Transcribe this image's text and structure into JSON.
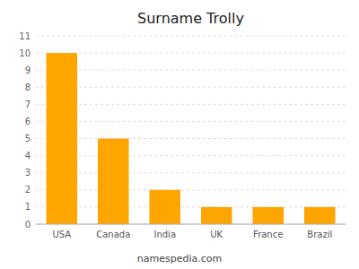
{
  "chart_data": {
    "type": "bar",
    "title": "Surname Trolly",
    "categories": [
      "USA",
      "Canada",
      "India",
      "UK",
      "France",
      "Brazil"
    ],
    "values": [
      10,
      5,
      2,
      1,
      1,
      1
    ],
    "color": "#FFA500",
    "ylim": [
      0,
      11
    ],
    "yticks": [
      0,
      1,
      2,
      3,
      4,
      5,
      6,
      7,
      8,
      9,
      10,
      11
    ],
    "grid": true,
    "annotations": [
      "namespedia.com"
    ]
  }
}
